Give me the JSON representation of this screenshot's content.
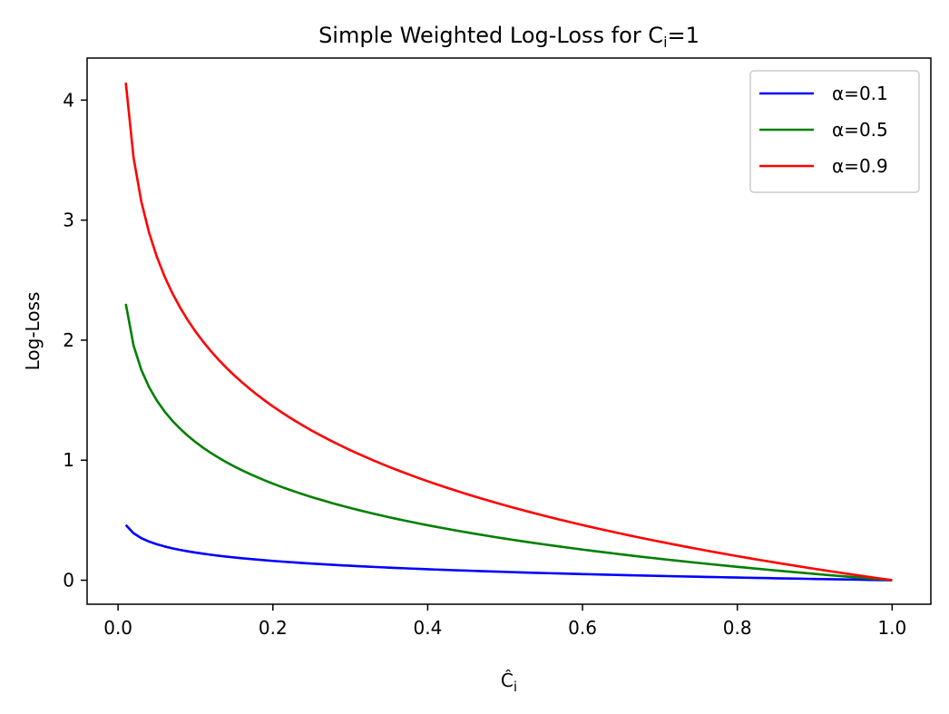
{
  "chart_data": {
    "type": "line",
    "title": "Simple Weighted Log-Loss for C",
    "title_sub": "i",
    "title_suffix": "=1",
    "xlabel": "Ĉ",
    "xlabel_sub": "i",
    "ylabel": "Log-Loss",
    "xlim": [
      -0.04,
      1.05
    ],
    "ylim": [
      -0.2,
      4.35
    ],
    "xticks": [
      0.0,
      0.2,
      0.4,
      0.6,
      0.8,
      1.0
    ],
    "xtick_labels": [
      "0.0",
      "0.2",
      "0.4",
      "0.6",
      "0.8",
      "1.0"
    ],
    "yticks": [
      0,
      1,
      2,
      3,
      4
    ],
    "ytick_labels": [
      "0",
      "1",
      "2",
      "3",
      "4"
    ],
    "grid": false,
    "legend_position": "top-right",
    "x_range": [
      0.01,
      1.0
    ],
    "series": [
      {
        "name": "α=0.1",
        "alpha": 0.1,
        "color": "#0000ff"
      },
      {
        "name": "α=0.5",
        "alpha": 0.5,
        "color": "#008000"
      },
      {
        "name": "α=0.9",
        "alpha": 0.9,
        "color": "#ff0000"
      }
    ]
  }
}
